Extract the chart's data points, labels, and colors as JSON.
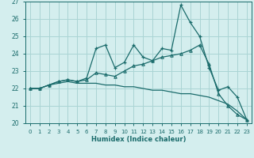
{
  "xlabel": "Humidex (Indice chaleur)",
  "x_values": [
    0,
    1,
    2,
    3,
    4,
    5,
    6,
    7,
    8,
    9,
    10,
    11,
    12,
    13,
    14,
    15,
    16,
    17,
    18,
    19,
    20,
    21,
    22,
    23
  ],
  "line1": [
    22.0,
    22.0,
    22.2,
    22.4,
    22.5,
    22.4,
    22.6,
    24.3,
    24.5,
    23.2,
    23.5,
    24.5,
    23.8,
    23.6,
    24.3,
    24.2,
    26.8,
    25.8,
    25.0,
    23.2,
    21.9,
    22.1,
    21.5,
    20.2
  ],
  "line2": [
    22.0,
    22.0,
    22.2,
    22.4,
    22.5,
    22.4,
    22.5,
    22.9,
    22.8,
    22.7,
    23.0,
    23.3,
    23.4,
    23.6,
    23.8,
    23.9,
    24.0,
    24.2,
    24.5,
    23.4,
    21.7,
    21.0,
    20.5,
    20.2
  ],
  "line3": [
    22.0,
    22.0,
    22.2,
    22.3,
    22.4,
    22.3,
    22.3,
    22.3,
    22.2,
    22.2,
    22.1,
    22.1,
    22.0,
    21.9,
    21.9,
    21.8,
    21.7,
    21.7,
    21.6,
    21.5,
    21.3,
    21.1,
    20.7,
    20.2
  ],
  "bg_color": "#d4eeee",
  "grid_color": "#aad4d4",
  "line_color": "#1a6b6b",
  "ylim": [
    20,
    27
  ],
  "yticks": [
    20,
    21,
    22,
    23,
    24,
    25,
    26,
    27
  ]
}
